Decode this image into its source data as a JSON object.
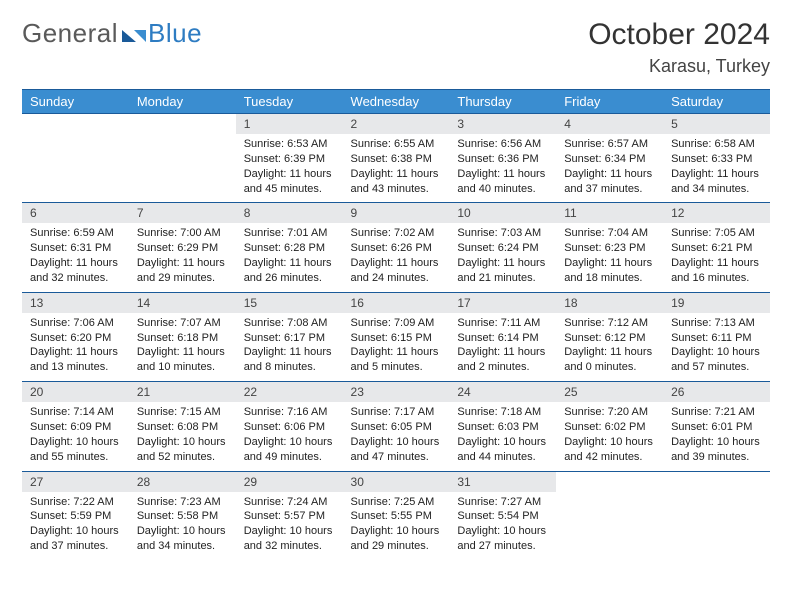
{
  "brand": {
    "part1": "General",
    "part2": "Blue"
  },
  "title": "October 2024",
  "location": "Karasu, Turkey",
  "colors": {
    "header_bg": "#3a8dd0",
    "header_fg": "#ffffff",
    "rule": "#1a5a99",
    "daynum_bg": "#e7e8ea",
    "text": "#222222",
    "page_bg": "#ffffff"
  },
  "day_labels": [
    "Sunday",
    "Monday",
    "Tuesday",
    "Wednesday",
    "Thursday",
    "Friday",
    "Saturday"
  ],
  "weeks": [
    {
      "nums": [
        "",
        "",
        "1",
        "2",
        "3",
        "4",
        "5"
      ],
      "cells": [
        null,
        null,
        {
          "sunrise": "6:53 AM",
          "sunset": "6:39 PM",
          "daylight": "11 hours and 45 minutes."
        },
        {
          "sunrise": "6:55 AM",
          "sunset": "6:38 PM",
          "daylight": "11 hours and 43 minutes."
        },
        {
          "sunrise": "6:56 AM",
          "sunset": "6:36 PM",
          "daylight": "11 hours and 40 minutes."
        },
        {
          "sunrise": "6:57 AM",
          "sunset": "6:34 PM",
          "daylight": "11 hours and 37 minutes."
        },
        {
          "sunrise": "6:58 AM",
          "sunset": "6:33 PM",
          "daylight": "11 hours and 34 minutes."
        }
      ]
    },
    {
      "nums": [
        "6",
        "7",
        "8",
        "9",
        "10",
        "11",
        "12"
      ],
      "cells": [
        {
          "sunrise": "6:59 AM",
          "sunset": "6:31 PM",
          "daylight": "11 hours and 32 minutes."
        },
        {
          "sunrise": "7:00 AM",
          "sunset": "6:29 PM",
          "daylight": "11 hours and 29 minutes."
        },
        {
          "sunrise": "7:01 AM",
          "sunset": "6:28 PM",
          "daylight": "11 hours and 26 minutes."
        },
        {
          "sunrise": "7:02 AM",
          "sunset": "6:26 PM",
          "daylight": "11 hours and 24 minutes."
        },
        {
          "sunrise": "7:03 AM",
          "sunset": "6:24 PM",
          "daylight": "11 hours and 21 minutes."
        },
        {
          "sunrise": "7:04 AM",
          "sunset": "6:23 PM",
          "daylight": "11 hours and 18 minutes."
        },
        {
          "sunrise": "7:05 AM",
          "sunset": "6:21 PM",
          "daylight": "11 hours and 16 minutes."
        }
      ]
    },
    {
      "nums": [
        "13",
        "14",
        "15",
        "16",
        "17",
        "18",
        "19"
      ],
      "cells": [
        {
          "sunrise": "7:06 AM",
          "sunset": "6:20 PM",
          "daylight": "11 hours and 13 minutes."
        },
        {
          "sunrise": "7:07 AM",
          "sunset": "6:18 PM",
          "daylight": "11 hours and 10 minutes."
        },
        {
          "sunrise": "7:08 AM",
          "sunset": "6:17 PM",
          "daylight": "11 hours and 8 minutes."
        },
        {
          "sunrise": "7:09 AM",
          "sunset": "6:15 PM",
          "daylight": "11 hours and 5 minutes."
        },
        {
          "sunrise": "7:11 AM",
          "sunset": "6:14 PM",
          "daylight": "11 hours and 2 minutes."
        },
        {
          "sunrise": "7:12 AM",
          "sunset": "6:12 PM",
          "daylight": "11 hours and 0 minutes."
        },
        {
          "sunrise": "7:13 AM",
          "sunset": "6:11 PM",
          "daylight": "10 hours and 57 minutes."
        }
      ]
    },
    {
      "nums": [
        "20",
        "21",
        "22",
        "23",
        "24",
        "25",
        "26"
      ],
      "cells": [
        {
          "sunrise": "7:14 AM",
          "sunset": "6:09 PM",
          "daylight": "10 hours and 55 minutes."
        },
        {
          "sunrise": "7:15 AM",
          "sunset": "6:08 PM",
          "daylight": "10 hours and 52 minutes."
        },
        {
          "sunrise": "7:16 AM",
          "sunset": "6:06 PM",
          "daylight": "10 hours and 49 minutes."
        },
        {
          "sunrise": "7:17 AM",
          "sunset": "6:05 PM",
          "daylight": "10 hours and 47 minutes."
        },
        {
          "sunrise": "7:18 AM",
          "sunset": "6:03 PM",
          "daylight": "10 hours and 44 minutes."
        },
        {
          "sunrise": "7:20 AM",
          "sunset": "6:02 PM",
          "daylight": "10 hours and 42 minutes."
        },
        {
          "sunrise": "7:21 AM",
          "sunset": "6:01 PM",
          "daylight": "10 hours and 39 minutes."
        }
      ]
    },
    {
      "nums": [
        "27",
        "28",
        "29",
        "30",
        "31",
        "",
        ""
      ],
      "cells": [
        {
          "sunrise": "7:22 AM",
          "sunset": "5:59 PM",
          "daylight": "10 hours and 37 minutes."
        },
        {
          "sunrise": "7:23 AM",
          "sunset": "5:58 PM",
          "daylight": "10 hours and 34 minutes."
        },
        {
          "sunrise": "7:24 AM",
          "sunset": "5:57 PM",
          "daylight": "10 hours and 32 minutes."
        },
        {
          "sunrise": "7:25 AM",
          "sunset": "5:55 PM",
          "daylight": "10 hours and 29 minutes."
        },
        {
          "sunrise": "7:27 AM",
          "sunset": "5:54 PM",
          "daylight": "10 hours and 27 minutes."
        },
        null,
        null
      ]
    }
  ],
  "labels": {
    "sunrise": "Sunrise:",
    "sunset": "Sunset:",
    "daylight": "Daylight:"
  }
}
